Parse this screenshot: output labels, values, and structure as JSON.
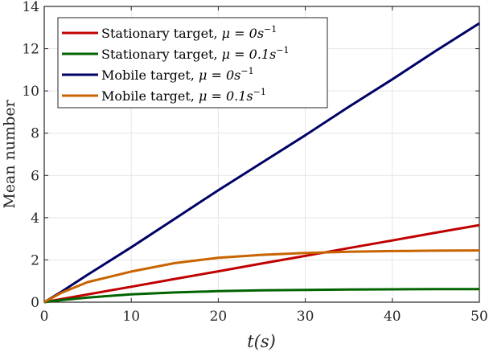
{
  "chart_data": {
    "type": "line",
    "title": "",
    "xlabel": "t(s)",
    "ylabel": "Mean number",
    "xlim": [
      0,
      50
    ],
    "ylim": [
      0,
      14
    ],
    "xticks": [
      0,
      10,
      20,
      30,
      40,
      50
    ],
    "yticks": [
      0,
      2,
      4,
      6,
      8,
      10,
      12,
      14
    ],
    "grid": true,
    "legend_position": "upper left",
    "x": [
      0,
      2,
      5,
      10,
      15,
      20,
      25,
      30,
      35,
      40,
      45,
      50
    ],
    "series": [
      {
        "name": "Stationary target, μ = 0s⁻¹",
        "color": "#C00000",
        "values": [
          0,
          0.15,
          0.37,
          0.73,
          1.1,
          1.46,
          1.83,
          2.19,
          2.56,
          2.92,
          3.29,
          3.65
        ]
      },
      {
        "name": "Stationary target, μ = 0.1s⁻¹",
        "color": "#006400",
        "values": [
          0,
          0.1,
          0.22,
          0.37,
          0.46,
          0.52,
          0.56,
          0.58,
          0.6,
          0.61,
          0.62,
          0.62
        ]
      },
      {
        "name": "Mobile target, μ = 0s⁻¹",
        "color": "#000066",
        "values": [
          0,
          0.5,
          1.3,
          2.6,
          3.95,
          5.3,
          6.6,
          7.9,
          9.25,
          10.55,
          11.9,
          13.2
        ]
      },
      {
        "name": "Mobile target, μ = 0.1s⁻¹",
        "color": "#C86400",
        "values": [
          0,
          0.45,
          0.95,
          1.45,
          1.85,
          2.1,
          2.24,
          2.33,
          2.39,
          2.42,
          2.44,
          2.45
        ]
      }
    ]
  },
  "legend": [
    {
      "label": "Stationary target, ",
      "mu": "μ = 0s",
      "exp": "−1"
    },
    {
      "label": "Stationary target, ",
      "mu": "μ = 0.1s",
      "exp": "−1"
    },
    {
      "label": "Mobile target, ",
      "mu": "μ = 0s",
      "exp": "−1"
    },
    {
      "label": "Mobile target, ",
      "mu": "μ = 0.1s",
      "exp": "−1"
    }
  ]
}
